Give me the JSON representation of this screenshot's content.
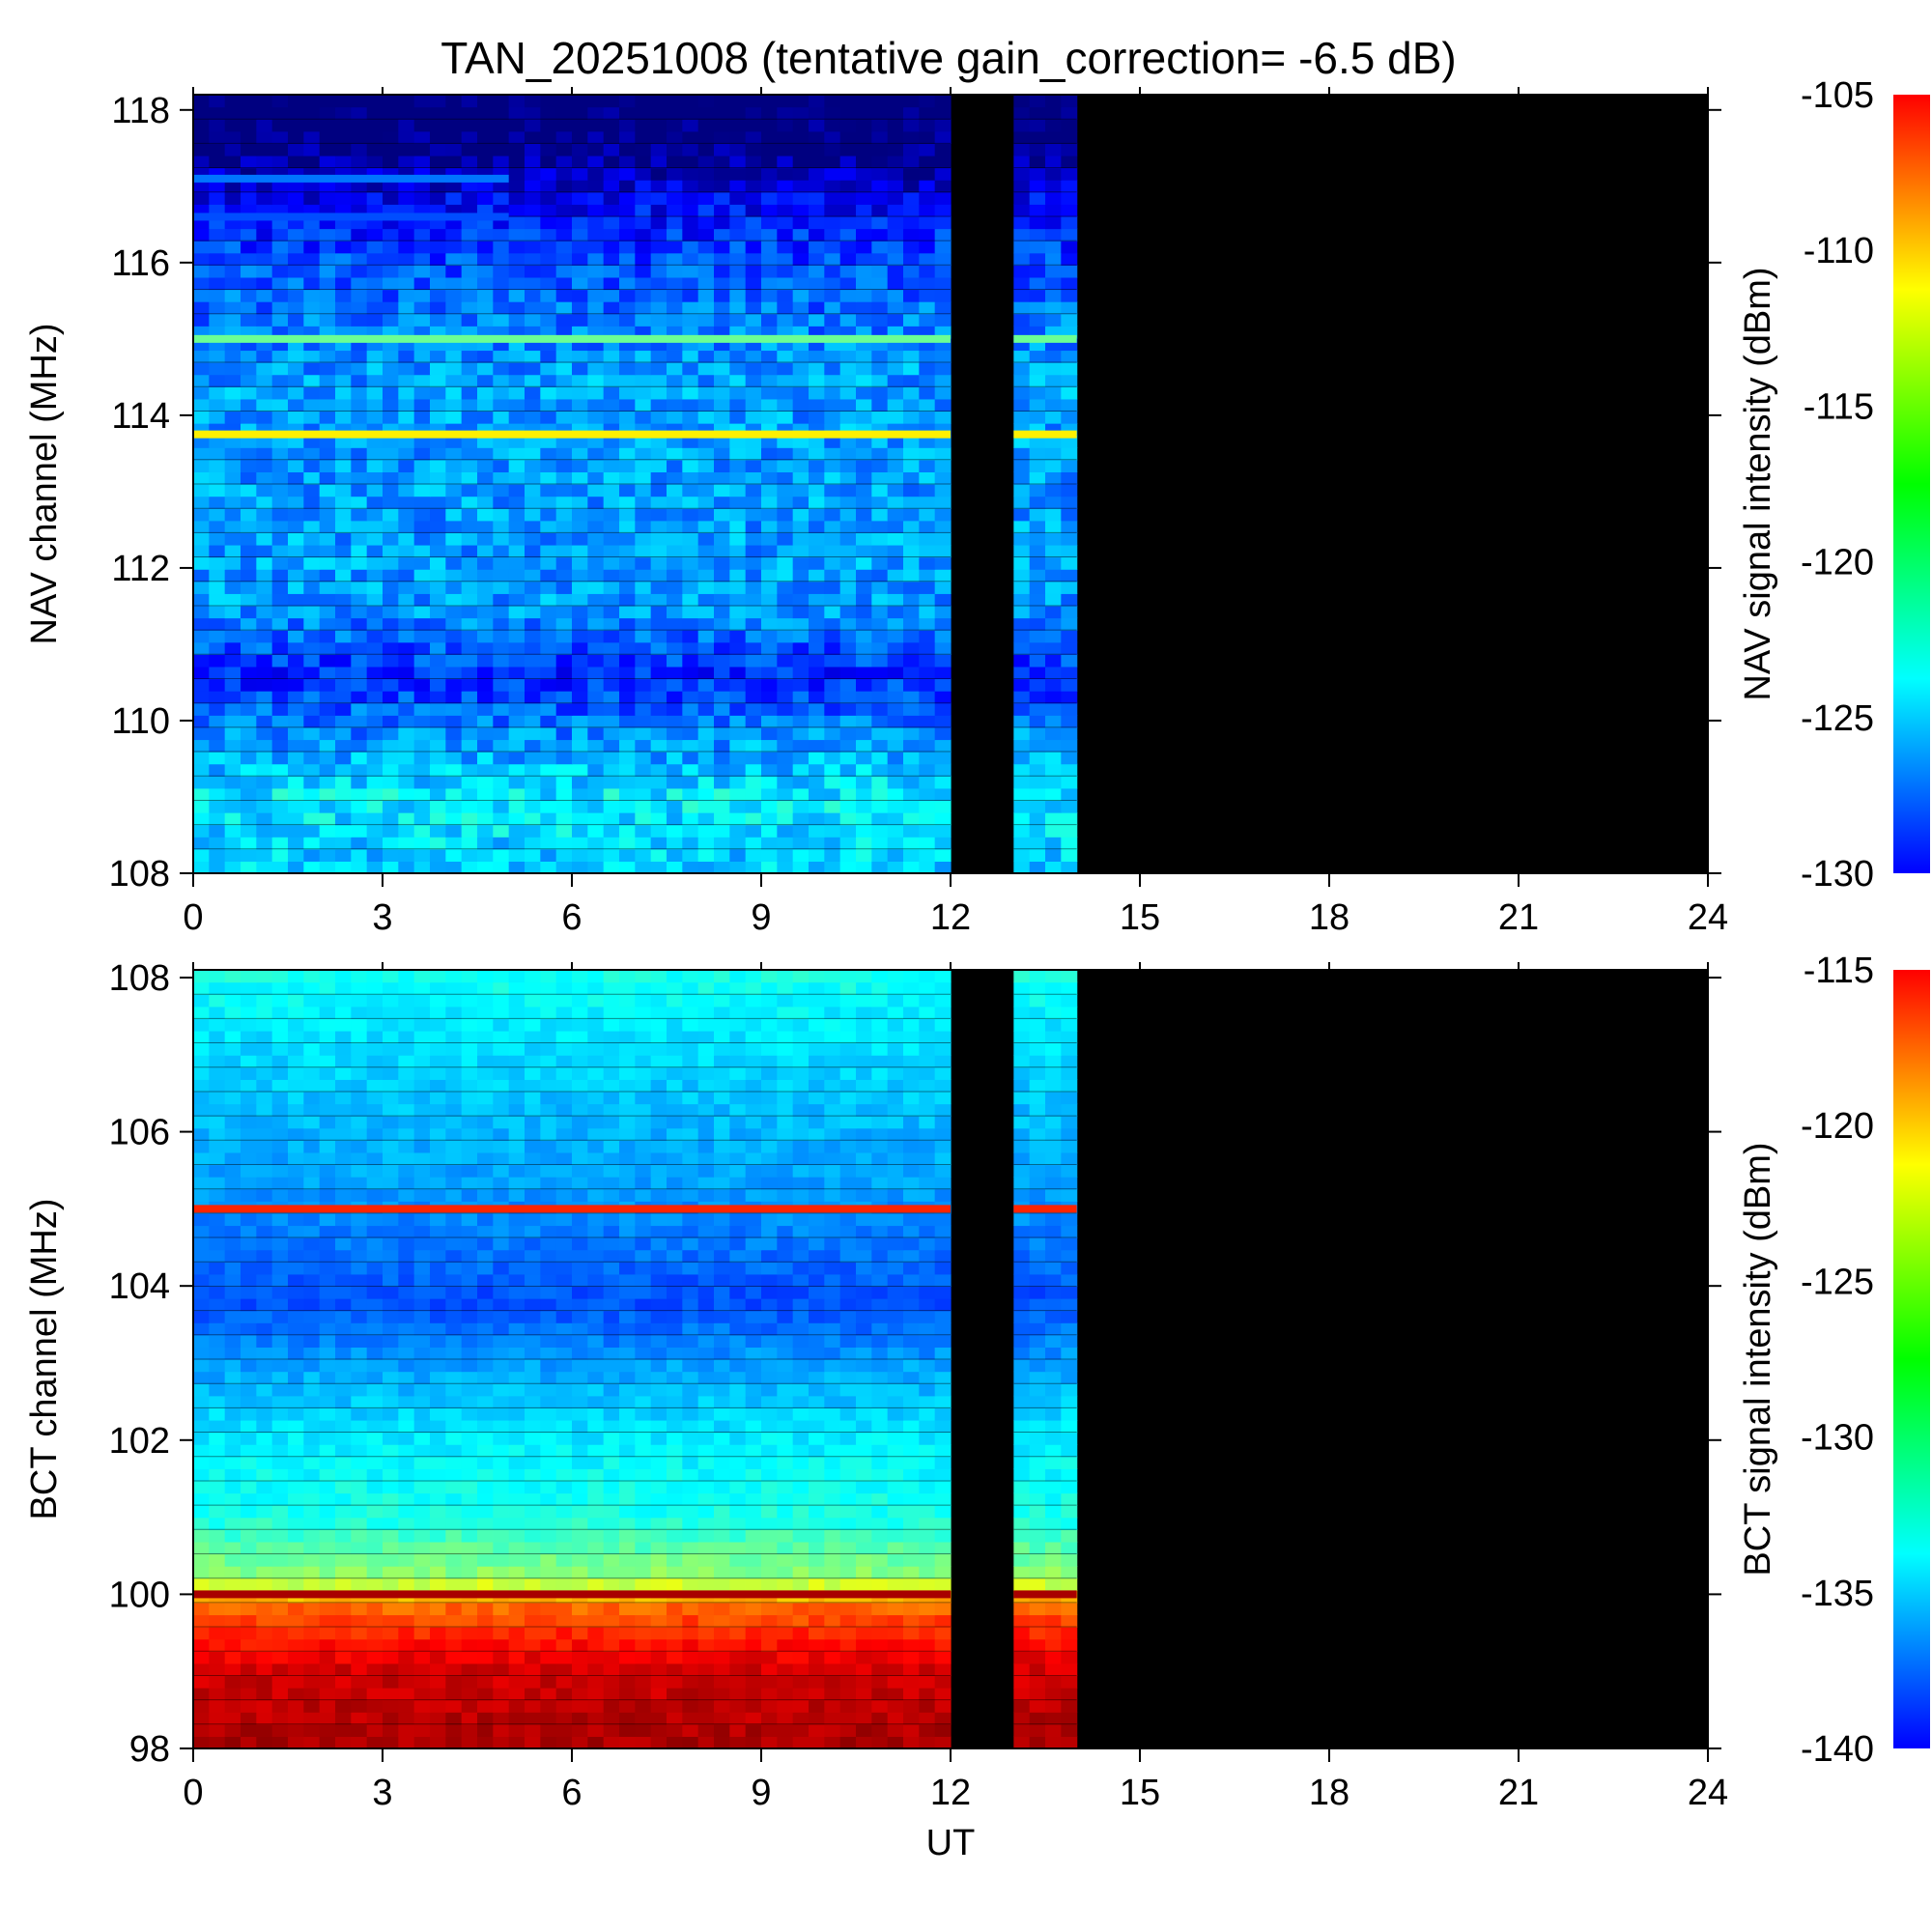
{
  "chart_data": {
    "type": "heatmap",
    "title": "TAN_20251008 (tentative gain_correction= -6.5 dB)",
    "xlabel": "UT",
    "xlim": [
      0,
      24
    ],
    "xticks": [
      "0",
      "3",
      "6",
      "9",
      "12",
      "15",
      "18",
      "21",
      "24"
    ],
    "data_gaps_UT": [
      [
        12,
        13
      ],
      [
        14,
        24
      ]
    ],
    "panels": [
      {
        "name": "NAV",
        "ylabel": "NAV channel (MHz)",
        "ylim": [
          108,
          118.2
        ],
        "yticks": [
          "108",
          "110",
          "112",
          "114",
          "116",
          "118"
        ],
        "colorbar_label": "NAV signal intensity (dBm)",
        "colorbar_range": [
          -130,
          -105
        ],
        "colorbar_ticks": [
          "-105",
          "-110",
          "-115",
          "-120",
          "-125",
          "-130"
        ],
        "strong_channels": [
          {
            "freq_MHz": 113.75,
            "intensity_dBm": -114
          },
          {
            "freq_MHz": 115.0,
            "intensity_dBm": -118
          },
          {
            "freq_MHz": 117.1,
            "intensity_dBm": -124,
            "until_UT": 5
          },
          {
            "freq_MHz": 116.6,
            "intensity_dBm": -125,
            "until_UT": 5
          }
        ],
        "background_profile": [
          {
            "freq_MHz": 108.0,
            "intensity_dBm": -122
          },
          {
            "freq_MHz": 109.0,
            "intensity_dBm": -121
          },
          {
            "freq_MHz": 110.0,
            "intensity_dBm": -124
          },
          {
            "freq_MHz": 110.6,
            "intensity_dBm": -126
          },
          {
            "freq_MHz": 111.5,
            "intensity_dBm": -123
          },
          {
            "freq_MHz": 113.0,
            "intensity_dBm": -123
          },
          {
            "freq_MHz": 114.5,
            "intensity_dBm": -123
          },
          {
            "freq_MHz": 116.0,
            "intensity_dBm": -125
          },
          {
            "freq_MHz": 116.8,
            "intensity_dBm": -127
          },
          {
            "freq_MHz": 117.5,
            "intensity_dBm": -130
          },
          {
            "freq_MHz": 118.2,
            "intensity_dBm": -131
          }
        ]
      },
      {
        "name": "BCT",
        "ylabel": "BCT channel (MHz)",
        "ylim": [
          98,
          108.1
        ],
        "yticks": [
          "98",
          "100",
          "102",
          "104",
          "106",
          "108"
        ],
        "colorbar_label": "BCT signal intensity (dBm)",
        "colorbar_range": [
          -140,
          -115
        ],
        "colorbar_ticks": [
          "-115",
          "-120",
          "-125",
          "-130",
          "-135",
          "-140"
        ],
        "strong_channels": [
          {
            "freq_MHz": 100.0,
            "intensity_dBm": -116
          },
          {
            "freq_MHz": 105.0,
            "intensity_dBm": -119
          }
        ],
        "background_profile": [
          {
            "freq_MHz": 98.0,
            "intensity_dBm": -116
          },
          {
            "freq_MHz": 99.0,
            "intensity_dBm": -117
          },
          {
            "freq_MHz": 99.5,
            "intensity_dBm": -119
          },
          {
            "freq_MHz": 99.9,
            "intensity_dBm": -121
          },
          {
            "freq_MHz": 100.2,
            "intensity_dBm": -127
          },
          {
            "freq_MHz": 101.0,
            "intensity_dBm": -130
          },
          {
            "freq_MHz": 102.0,
            "intensity_dBm": -131
          },
          {
            "freq_MHz": 103.0,
            "intensity_dBm": -133
          },
          {
            "freq_MHz": 103.8,
            "intensity_dBm": -135
          },
          {
            "freq_MHz": 104.5,
            "intensity_dBm": -134
          },
          {
            "freq_MHz": 105.3,
            "intensity_dBm": -133
          },
          {
            "freq_MHz": 106.5,
            "intensity_dBm": -132
          },
          {
            "freq_MHz": 107.5,
            "intensity_dBm": -131
          },
          {
            "freq_MHz": 108.1,
            "intensity_dBm": -130
          }
        ]
      }
    ]
  }
}
